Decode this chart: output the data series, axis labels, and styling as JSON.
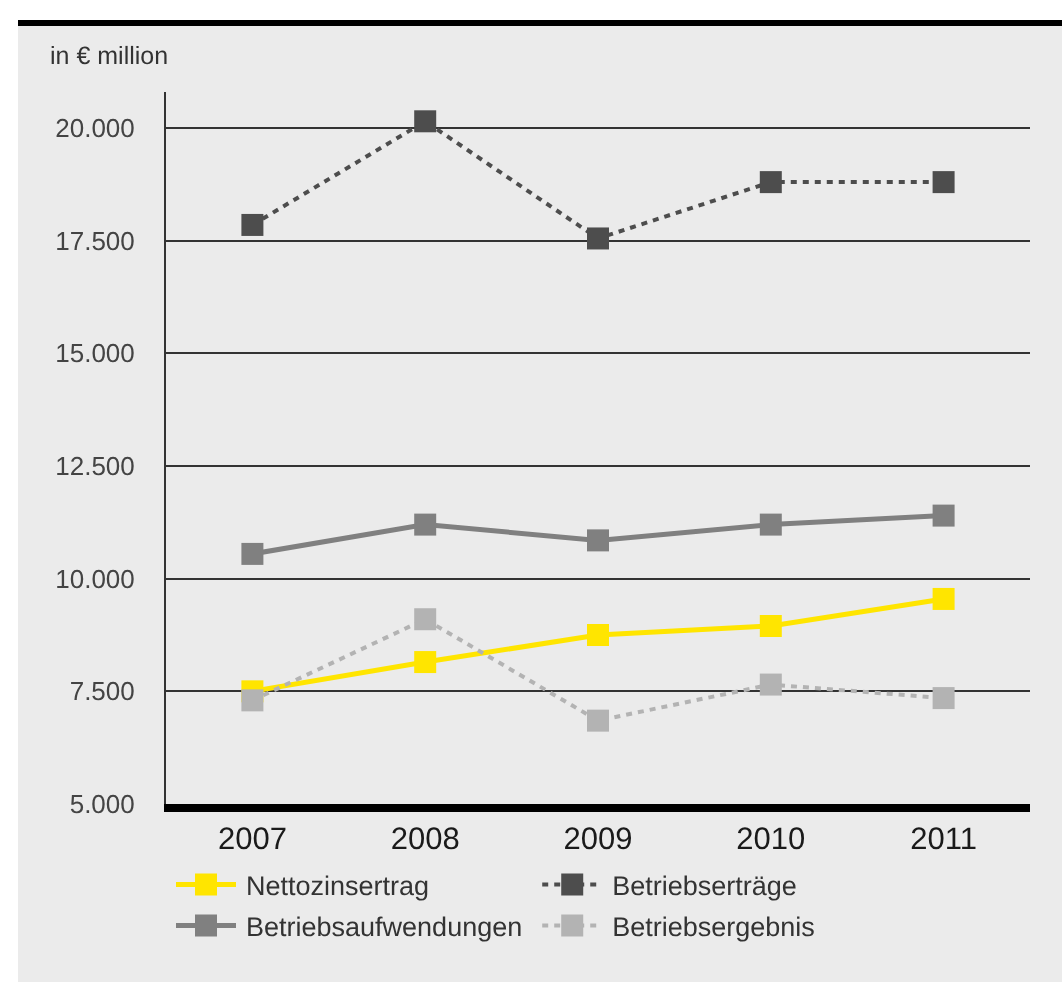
{
  "chart_data": {
    "type": "line",
    "ylabel": "in € million",
    "categories": [
      "2007",
      "2008",
      "2009",
      "2010",
      "2011"
    ],
    "series": [
      {
        "name": "Nettozinsertrag",
        "color": "#ffe500",
        "line_style": "solid",
        "values": [
          7500,
          8150,
          8750,
          8950,
          9550
        ]
      },
      {
        "name": "Betriebserträge",
        "color": "#4d4d4d",
        "line_style": "dotted",
        "values": [
          17850,
          20150,
          17550,
          18800,
          18800
        ]
      },
      {
        "name": "Betriebsaufwendungen",
        "color": "#808080",
        "line_style": "solid",
        "values": [
          10550,
          11200,
          10850,
          11200,
          11400
        ]
      },
      {
        "name": "Betriebsergebnis",
        "color": "#b3b3b3",
        "line_style": "dotted",
        "values": [
          7300,
          9100,
          6850,
          7650,
          7350
        ]
      }
    ],
    "ylim": [
      5000,
      20800
    ],
    "yticks": [
      {
        "value": 5000,
        "label": "5.000"
      },
      {
        "value": 7500,
        "label": "7.500"
      },
      {
        "value": 10000,
        "label": "10.000"
      },
      {
        "value": 12500,
        "label": "12.500"
      },
      {
        "value": 15000,
        "label": "15.000"
      },
      {
        "value": 17500,
        "label": "17.500"
      },
      {
        "value": 20000,
        "label": "20.000"
      }
    ],
    "grid": "y",
    "legend": "bottom",
    "marker": "square"
  }
}
